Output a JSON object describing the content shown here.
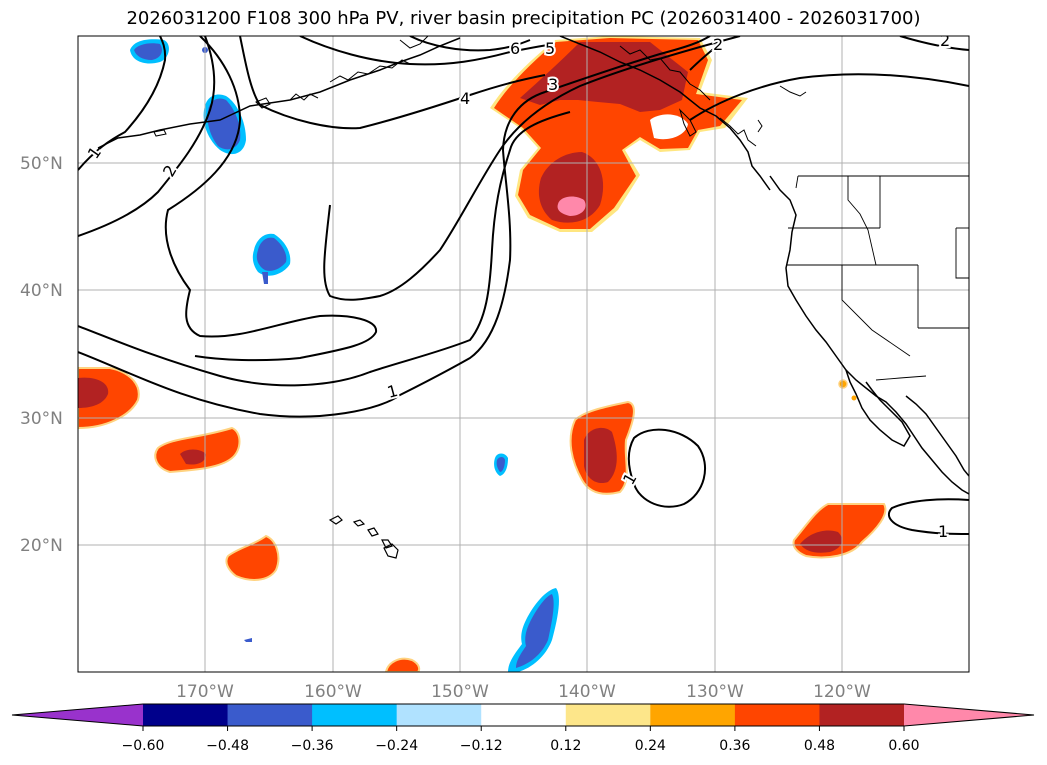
{
  "title": "2026031200 F108 300 hPa PV, river basin precipitation PC (2026031400 - 2026031700)",
  "axes": {
    "lat_ticks": [
      "50°N",
      "40°N",
      "30°N",
      "20°N"
    ],
    "lon_ticks": [
      "170°W",
      "160°W",
      "150°W",
      "140°W",
      "130°W",
      "120°W"
    ]
  },
  "contour_labels": [
    "1",
    "2",
    "6",
    "5",
    "4",
    "3",
    "2",
    "2",
    "1",
    "1",
    "1"
  ],
  "colorbar": {
    "ticks": [
      "−0.60",
      "−0.48",
      "−0.36",
      "−0.24",
      "−0.12",
      "0.12",
      "0.24",
      "0.36",
      "0.48",
      "0.60"
    ],
    "colors": [
      "#9932cc",
      "#00008b",
      "#3a5bcc",
      "#00bfff",
      "#b0e2ff",
      "#ffffff",
      "#fde68a",
      "#ffa500",
      "#ff4500",
      "#b22222",
      "#ff88aa"
    ]
  },
  "chart_data": {
    "type": "contour-map",
    "title": "2026031200 F108 300 hPa PV, river basin precipitation PC (2026031400 - 2026031700)",
    "lat_range": [
      10,
      60
    ],
    "lon_range": [
      -180,
      -110
    ],
    "pv_contour_levels": [
      1,
      2,
      3,
      4,
      5,
      6
    ],
    "colorbar_levels": [
      -0.6,
      -0.48,
      -0.36,
      -0.24,
      -0.12,
      0.12,
      0.24,
      0.36,
      0.48,
      0.6
    ],
    "colorbar_extend": "both",
    "grid": true
  }
}
